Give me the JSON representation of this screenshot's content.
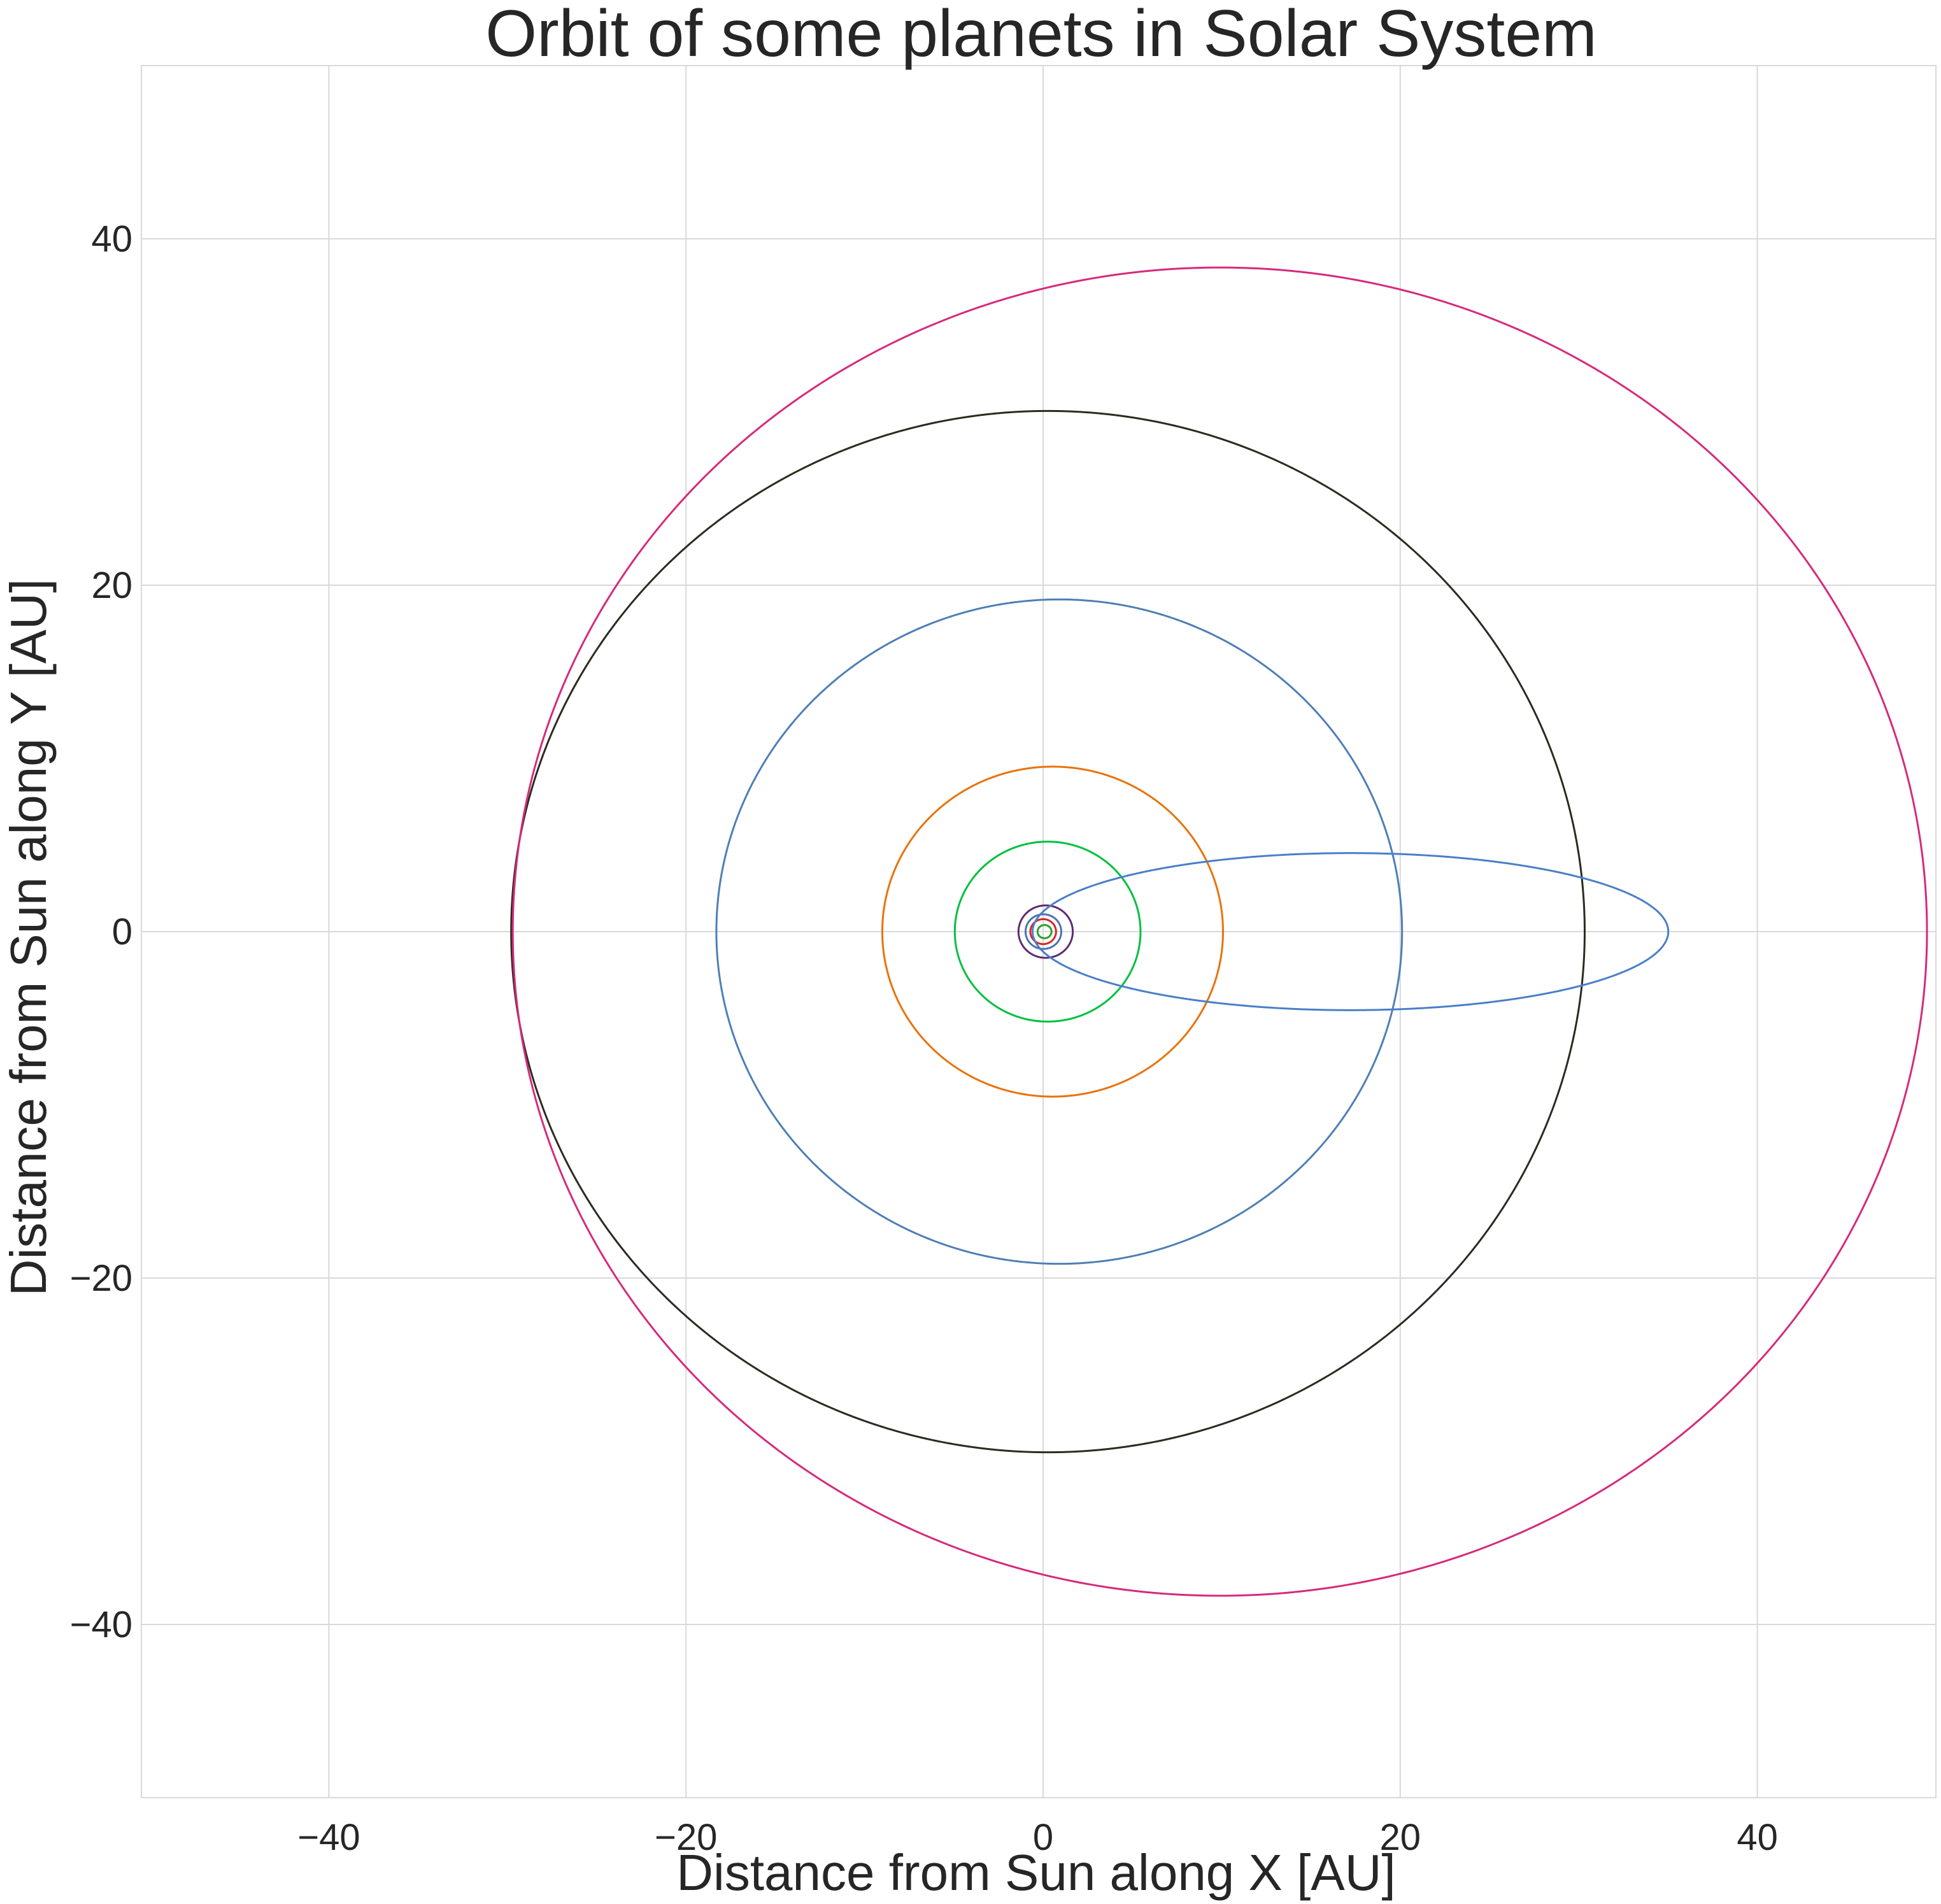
{
  "chart_data": {
    "type": "line",
    "title": "Orbit of some planets in Solar System",
    "xlabel": "Distance from Sun along X [AU]",
    "ylabel": "Distance from Sun along Y [AU]",
    "xlim": [
      -50.5,
      50
    ],
    "ylim": [
      -50,
      50
    ],
    "xticks": [
      -40,
      -20,
      0,
      20,
      40
    ],
    "yticks": [
      -40,
      -20,
      0,
      20,
      40
    ],
    "xtick_labels": [
      "−40",
      "−20",
      "0",
      "20",
      "40"
    ],
    "ytick_labels": [
      "−40",
      "−20",
      "0",
      "20",
      "40"
    ],
    "grid": true,
    "series": [
      {
        "color": "#2ca02c",
        "a": 0.39,
        "e": 0.206
      },
      {
        "color": "#d62728",
        "a": 0.72,
        "e": 0.007
      },
      {
        "color": "#4c72b0",
        "a": 1.0,
        "e": 0.017
      },
      {
        "color": "#5e2b6e",
        "a": 1.52,
        "e": 0.093
      },
      {
        "color": "#00c040",
        "a": 5.2,
        "e": 0.049
      },
      {
        "color": "#e8730c",
        "a": 9.54,
        "e": 0.056
      },
      {
        "color": "#4f7fb5",
        "a": 19.2,
        "e": 0.047
      },
      {
        "color": "#2b2b20",
        "a": 30.06,
        "e": 0.009
      },
      {
        "color": "#d62a7a",
        "a": 39.6,
        "e": 0.25
      },
      {
        "color": "#4a7fc8",
        "a": 17.8,
        "e": 0.967
      }
    ]
  }
}
